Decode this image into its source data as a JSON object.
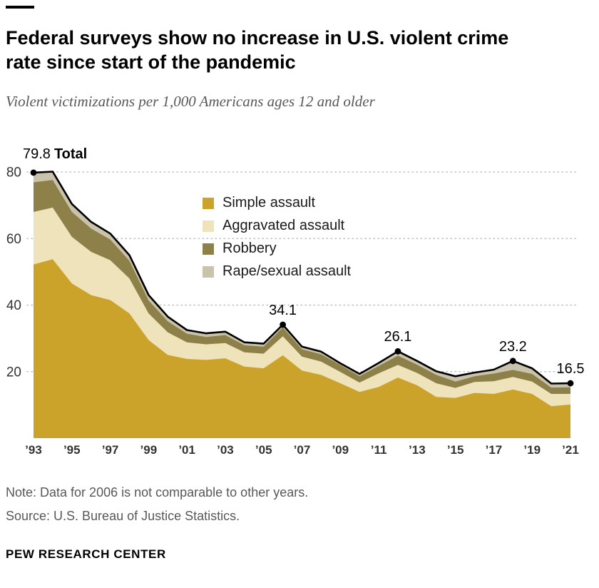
{
  "header": {
    "title": "Federal surveys show no increase in U.S. violent crime rate since start of the pandemic",
    "subtitle": "Violent victimizations per 1,000 Americans ages 12 and older"
  },
  "chart_data": {
    "type": "area",
    "stacked": true,
    "title": "Federal surveys show no increase in U.S. violent crime rate since start of the pandemic",
    "subtitle": "Violent victimizations per 1,000 Americans ages 12 and older",
    "x": [
      1993,
      1994,
      1995,
      1996,
      1997,
      1998,
      1999,
      2000,
      2001,
      2002,
      2003,
      2004,
      2005,
      2006,
      2007,
      2008,
      2009,
      2010,
      2011,
      2012,
      2013,
      2014,
      2015,
      2016,
      2017,
      2018,
      2019,
      2020,
      2021
    ],
    "x_tick_years": [
      1993,
      1995,
      1997,
      1999,
      2001,
      2003,
      2005,
      2007,
      2009,
      2011,
      2013,
      2015,
      2017,
      2019,
      2021
    ],
    "x_tick_labels": [
      "’93",
      "’95",
      "’97",
      "’99",
      "’01",
      "’03",
      "’05",
      "’07",
      "’09",
      "’11",
      "’13",
      "’15",
      "’17",
      "’19",
      "’21"
    ],
    "yticks": [
      20,
      40,
      60,
      80
    ],
    "ylim": [
      0,
      86
    ],
    "grid": "dotted horizontal",
    "legend_position": "inside top-center",
    "series": [
      {
        "name": "Simple assault",
        "color": "#CBA32B",
        "values": [
          52.2,
          53.8,
          46.5,
          43.0,
          41.5,
          37.5,
          29.5,
          25.0,
          23.8,
          23.5,
          24.0,
          21.5,
          21.0,
          24.9,
          20.3,
          19.0,
          16.5,
          13.9,
          15.4,
          18.2,
          15.9,
          12.4,
          12.1,
          13.6,
          13.3,
          14.6,
          13.3,
          9.6,
          10.1
        ]
      },
      {
        "name": "Aggravated assault",
        "color": "#EFE3BC",
        "values": [
          15.8,
          15.5,
          14.0,
          13.0,
          12.0,
          10.5,
          8.0,
          6.8,
          5.0,
          4.7,
          4.6,
          4.3,
          4.4,
          5.7,
          4.2,
          4.0,
          3.4,
          2.8,
          4.1,
          3.8,
          3.7,
          4.1,
          3.0,
          3.3,
          3.8,
          3.8,
          3.7,
          3.7,
          3.2
        ]
      },
      {
        "name": "Robbery",
        "color": "#8E8049",
        "values": [
          8.9,
          8.3,
          7.5,
          7.0,
          6.2,
          5.3,
          3.9,
          3.3,
          2.6,
          2.2,
          2.4,
          2.1,
          2.1,
          2.7,
          2.2,
          2.2,
          2.1,
          1.9,
          2.2,
          2.8,
          2.5,
          2.5,
          1.9,
          1.7,
          2.3,
          2.1,
          2.3,
          1.9,
          2.0
        ]
      },
      {
        "name": "Rape/sexual assault",
        "color": "#C9C3AB",
        "values": [
          2.9,
          2.5,
          2.4,
          2.0,
          1.8,
          1.7,
          1.6,
          1.4,
          1.1,
          1.1,
          1.0,
          0.9,
          0.9,
          0.8,
          0.8,
          0.8,
          0.5,
          0.7,
          0.9,
          1.3,
          1.1,
          1.1,
          1.6,
          1.1,
          1.2,
          2.7,
          1.7,
          1.2,
          1.2
        ]
      }
    ],
    "totals": [
      79.8,
      80.1,
      70.4,
      65.0,
      61.5,
      55.0,
      43.0,
      36.5,
      32.5,
      31.5,
      32.0,
      28.8,
      28.4,
      34.1,
      27.5,
      26.0,
      22.5,
      19.3,
      22.6,
      26.1,
      23.2,
      20.1,
      18.6,
      19.7,
      20.6,
      23.2,
      21.0,
      16.4,
      16.5
    ],
    "total_line_color": "#000000",
    "start_annotation": {
      "value": "79.8",
      "label": "Total"
    },
    "point_annotations": [
      {
        "year": 2006,
        "label": "34.1"
      },
      {
        "year": 2012,
        "label": "26.1"
      },
      {
        "year": 2018,
        "label": "23.2"
      },
      {
        "year": 2021,
        "label": "16.5"
      }
    ],
    "dot_years": [
      1993,
      2006,
      2012,
      2018,
      2021
    ]
  },
  "footer": {
    "note": "Note: Data for 2006 is not comparable to other years.",
    "source": "Source: U.S. Bureau of Justice Statistics.",
    "brand": "PEW RESEARCH CENTER"
  }
}
